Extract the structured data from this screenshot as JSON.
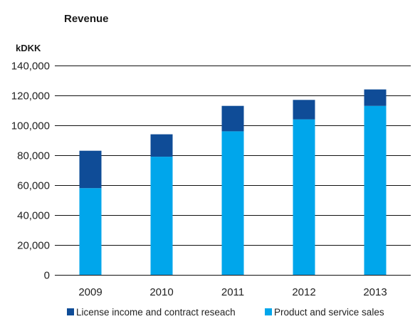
{
  "chart_data": {
    "type": "bar",
    "stacked": true,
    "title": "Revenue",
    "ylabel": "kDKK",
    "xlabel": "",
    "categories": [
      "2009",
      "2010",
      "2011",
      "2012",
      "2013"
    ],
    "ylim": [
      0,
      140000
    ],
    "yticks": [
      0,
      20000,
      40000,
      60000,
      80000,
      100000,
      120000,
      140000
    ],
    "ytick_labels": [
      "0",
      "20,000",
      "40,000",
      "60,000",
      "80,000",
      "100,000",
      "120,000",
      "140,000"
    ],
    "grid": true,
    "legend_position": "bottom",
    "series": [
      {
        "name": "Product and service sales",
        "color": "#00a6eb",
        "values": [
          58000,
          79000,
          96000,
          104000,
          113000
        ]
      },
      {
        "name": "License income and contract reseach",
        "color": "#0f4c97",
        "values": [
          25000,
          15000,
          17000,
          13000,
          11000
        ]
      }
    ],
    "legend_order": [
      1,
      0
    ]
  }
}
